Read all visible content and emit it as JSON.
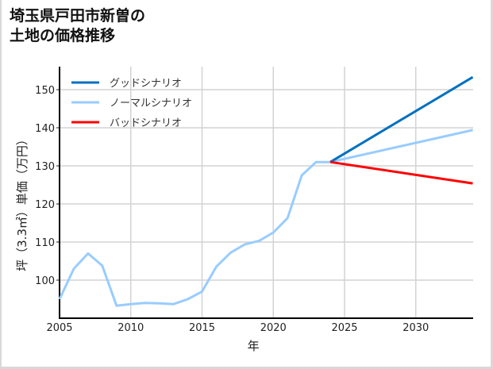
{
  "title_line1": "埼玉県戸田市新曽の",
  "title_line2": "土地の価格推移",
  "chart_data": {
    "type": "line",
    "title": "埼玉県戸田市新曽の土地の価格推移",
    "xlabel": "年",
    "ylabel": "坪（3.3㎡）単価（万円）",
    "xlim": [
      2005,
      2034
    ],
    "ylim": [
      90,
      156
    ],
    "xticks": [
      2005,
      2010,
      2015,
      2020,
      2025,
      2030
    ],
    "yticks": [
      100,
      110,
      120,
      130,
      140,
      150
    ],
    "grid": true,
    "legend_position": "upper left",
    "series": [
      {
        "name": "グッドシナリオ",
        "color": "#0070c0",
        "x": [
          2024,
          2034
        ],
        "values": [
          131,
          153.3
        ]
      },
      {
        "name": "ノーマルシナリオ",
        "color": "#99ccff",
        "x": [
          2005,
          2006,
          2007,
          2008,
          2009,
          2010,
          2011,
          2012,
          2013,
          2014,
          2015,
          2016,
          2017,
          2018,
          2019,
          2020,
          2021,
          2022,
          2023,
          2024,
          2034
        ],
        "values": [
          95,
          103,
          107,
          103.8,
          93.3,
          93.7,
          94,
          93.9,
          93.7,
          95,
          97,
          103.5,
          107.2,
          109.4,
          110.3,
          112.5,
          116.3,
          127.5,
          131,
          131,
          139.4
        ]
      },
      {
        "name": "バッドシナリオ",
        "color": "#ff0000",
        "x": [
          2024,
          2034
        ],
        "values": [
          131,
          125.4
        ]
      }
    ]
  }
}
